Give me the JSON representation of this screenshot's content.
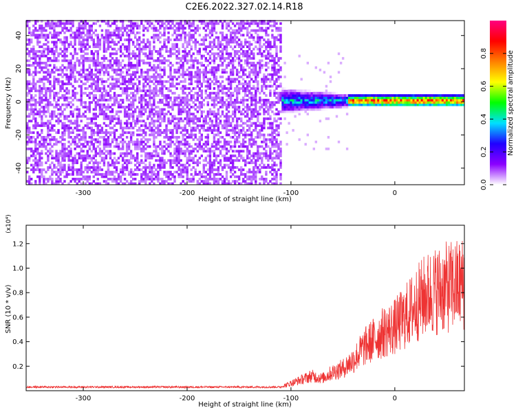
{
  "figure_title": "C2E6.2022.327.02.14.R18",
  "chart_data": [
    {
      "type": "heatmap",
      "xlabel": "Height of straight line (km)",
      "ylabel": "Frequency (Hz)",
      "xlim": [
        -355,
        67
      ],
      "ylim": [
        -50,
        49
      ],
      "xticks": [
        -300,
        -200,
        -100,
        0
      ],
      "xtick_labels": [
        "-300",
        "-200",
        "-100",
        "0"
      ],
      "yticks": [
        -40,
        -20,
        0,
        20,
        40
      ],
      "ytick_labels": [
        "-40",
        "-20",
        "0",
        "20",
        "40"
      ],
      "colorbar": {
        "label": "Normalized spectral amplitude",
        "range": [
          0.0,
          1.0
        ],
        "ticks": [
          0.0,
          0.2,
          0.4,
          0.6,
          0.8
        ],
        "tick_labels": [
          "0.0",
          "0.2",
          "0.4",
          "0.6",
          "0.8"
        ],
        "colormap": [
          "#ffffff",
          "#8b00ff",
          "#2000ff",
          "#00e0ff",
          "#00ff00",
          "#ffff00",
          "#ff8000",
          "#ff0000",
          "#ff0080"
        ]
      },
      "regions": [
        {
          "name": "noise",
          "x_range": [
            -355,
            -110
          ],
          "freq_range": [
            -50,
            49
          ],
          "amplitude": 0.05
        },
        {
          "name": "signal-broad",
          "x_range": [
            -115,
            -45
          ],
          "freq_center": 0,
          "freq_halfwidth": 8,
          "amplitude": 0.35
        },
        {
          "name": "signal-narrow",
          "x_range": [
            -45,
            67
          ],
          "freq_center": 0,
          "freq_halfwidth": 2,
          "amplitude": 0.9
        }
      ],
      "grid": false
    },
    {
      "type": "line",
      "xlabel": "Height of straight line (km)",
      "ylabel": "SNR (10 * v/v)",
      "y_multiplier": "(x10⁴)",
      "xlim": [
        -355,
        67
      ],
      "ylim": [
        0,
        13500
      ],
      "xticks": [
        -300,
        -200,
        -100,
        0
      ],
      "xtick_labels": [
        "-300",
        "-200",
        "-100",
        "0"
      ],
      "yticks": [
        2000,
        4000,
        6000,
        8000,
        10000,
        12000
      ],
      "ytick_labels": [
        "0.2",
        "0.4",
        "0.6",
        "0.8",
        "1.0",
        "1.2"
      ],
      "series": [
        {
          "color": "#ee3333",
          "x": [
            -355,
            -300,
            -250,
            -200,
            -150,
            -110,
            -100,
            -90,
            -80,
            -70,
            -60,
            -50,
            -40,
            -30,
            -20,
            -10,
            0,
            10,
            20,
            30,
            40,
            50,
            60,
            67
          ],
          "y": [
            300,
            300,
            300,
            300,
            300,
            300,
            600,
            900,
            1200,
            1000,
            1500,
            1800,
            2500,
            3500,
            4200,
            4800,
            5200,
            6000,
            7000,
            7800,
            8200,
            8400,
            8600,
            8800
          ]
        }
      ],
      "grid": false
    }
  ]
}
